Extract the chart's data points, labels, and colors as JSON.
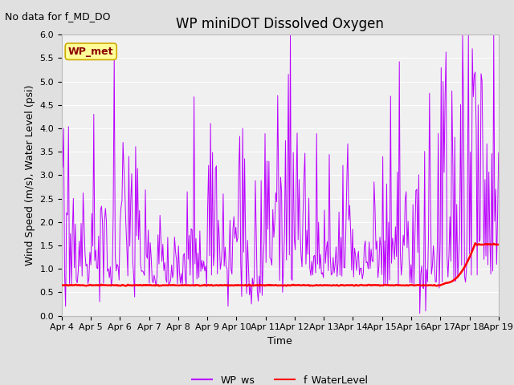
{
  "title": "WP miniDOT Dissolved Oxygen",
  "top_left_note": "No data for f_MD_DO",
  "ylabel": "Wind Speed (m/s), Water Level (psi)",
  "xlabel": "Time",
  "ylim": [
    0.0,
    6.0
  ],
  "yticks": [
    0.0,
    0.5,
    1.0,
    1.5,
    2.0,
    2.5,
    3.0,
    3.5,
    4.0,
    4.5,
    5.0,
    5.5,
    6.0
  ],
  "xtick_labels": [
    "Apr 4",
    "Apr 5",
    "Apr 6",
    "Apr 7",
    "Apr 8",
    "Apr 9",
    "Apr 10",
    "Apr 11",
    "Apr 12",
    "Apr 13",
    "Apr 14",
    "Apr 15",
    "Apr 16",
    "Apr 17",
    "Apr 18",
    "Apr 19"
  ],
  "legend_items": [
    {
      "label": "WP_ws",
      "color": "#AA00FF"
    },
    {
      "label": "f_WaterLevel",
      "color": "red"
    }
  ],
  "legend_box_label": "WP_met",
  "legend_box_facecolor": "#FFFF99",
  "legend_box_edgecolor": "#CCAA00",
  "bg_color": "#E0E0E0",
  "plot_bg_color": "#F0F0F0",
  "wp_ws_color": "#BB00FF",
  "f_wl_color": "red",
  "title_fontsize": 12,
  "note_fontsize": 9,
  "ylabel_fontsize": 9,
  "xlabel_fontsize": 9,
  "tick_fontsize": 8
}
